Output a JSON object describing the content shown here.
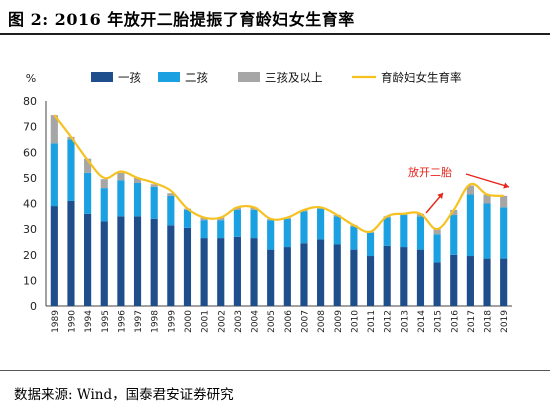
{
  "header": {
    "title": "图 2:  2016 年放开二胎提振了育龄妇女生育率"
  },
  "footer": {
    "source": "数据来源:  Wind，国泰君安证券研究"
  },
  "chart_data": {
    "type": "bar",
    "stacked": true,
    "y_unit_label": "%",
    "ylim": [
      0,
      80
    ],
    "yticks": [
      0,
      10,
      20,
      30,
      40,
      50,
      60,
      70,
      80
    ],
    "grid": false,
    "legend_position": "top",
    "categories": [
      "1989",
      "1990",
      "1994",
      "1995",
      "1996",
      "1997",
      "1998",
      "1999",
      "2000",
      "2001",
      "2002",
      "2003",
      "2004",
      "2005",
      "2006",
      "2007",
      "2008",
      "2009",
      "2010",
      "2011",
      "2012",
      "2013",
      "2014",
      "2015",
      "2016",
      "2017",
      "2018",
      "2019"
    ],
    "series": [
      {
        "name": "一孩",
        "color": "#1f4e8c",
        "values": [
          39,
          41,
          36,
          33,
          35,
          35,
          34,
          31.5,
          30.5,
          26.5,
          26.5,
          27,
          26.5,
          22,
          23,
          24.5,
          26,
          24,
          22,
          19.5,
          23.5,
          23,
          22,
          17,
          20,
          19.5,
          18.5,
          18.5
        ]
      },
      {
        "name": "二孩",
        "color": "#1ba1e2",
        "values": [
          24.5,
          24,
          16,
          13,
          14,
          13,
          12.5,
          11.5,
          7,
          7,
          7,
          10.5,
          11,
          11.5,
          11,
          12.5,
          12,
          11,
          9,
          9,
          11,
          12.5,
          13,
          11,
          15.5,
          24,
          21.5,
          20
        ]
      },
      {
        "name": "三孩及以上",
        "color": "#a6a6a6",
        "values": [
          11,
          1,
          5.5,
          3.5,
          3,
          2,
          1,
          1,
          0.5,
          1,
          1,
          1,
          1,
          0.5,
          0.5,
          0.5,
          0.5,
          0.5,
          0.5,
          0.5,
          0.5,
          0.5,
          1,
          2,
          2,
          3.5,
          3.5,
          4.5
        ]
      }
    ],
    "line": {
      "name": "育龄妇女生育率",
      "color": "#f5c221",
      "values": [
        74.5,
        66,
        57,
        50,
        52.5,
        50,
        48,
        45,
        38,
        34.5,
        34.5,
        38.5,
        38.5,
        34,
        34.5,
        37.5,
        38.5,
        35.5,
        31.5,
        29,
        35,
        36,
        36,
        30,
        37.5,
        47.5,
        43.5,
        43
      ]
    },
    "annotation": {
      "text": "放开二胎",
      "color": "#e8241c"
    }
  }
}
